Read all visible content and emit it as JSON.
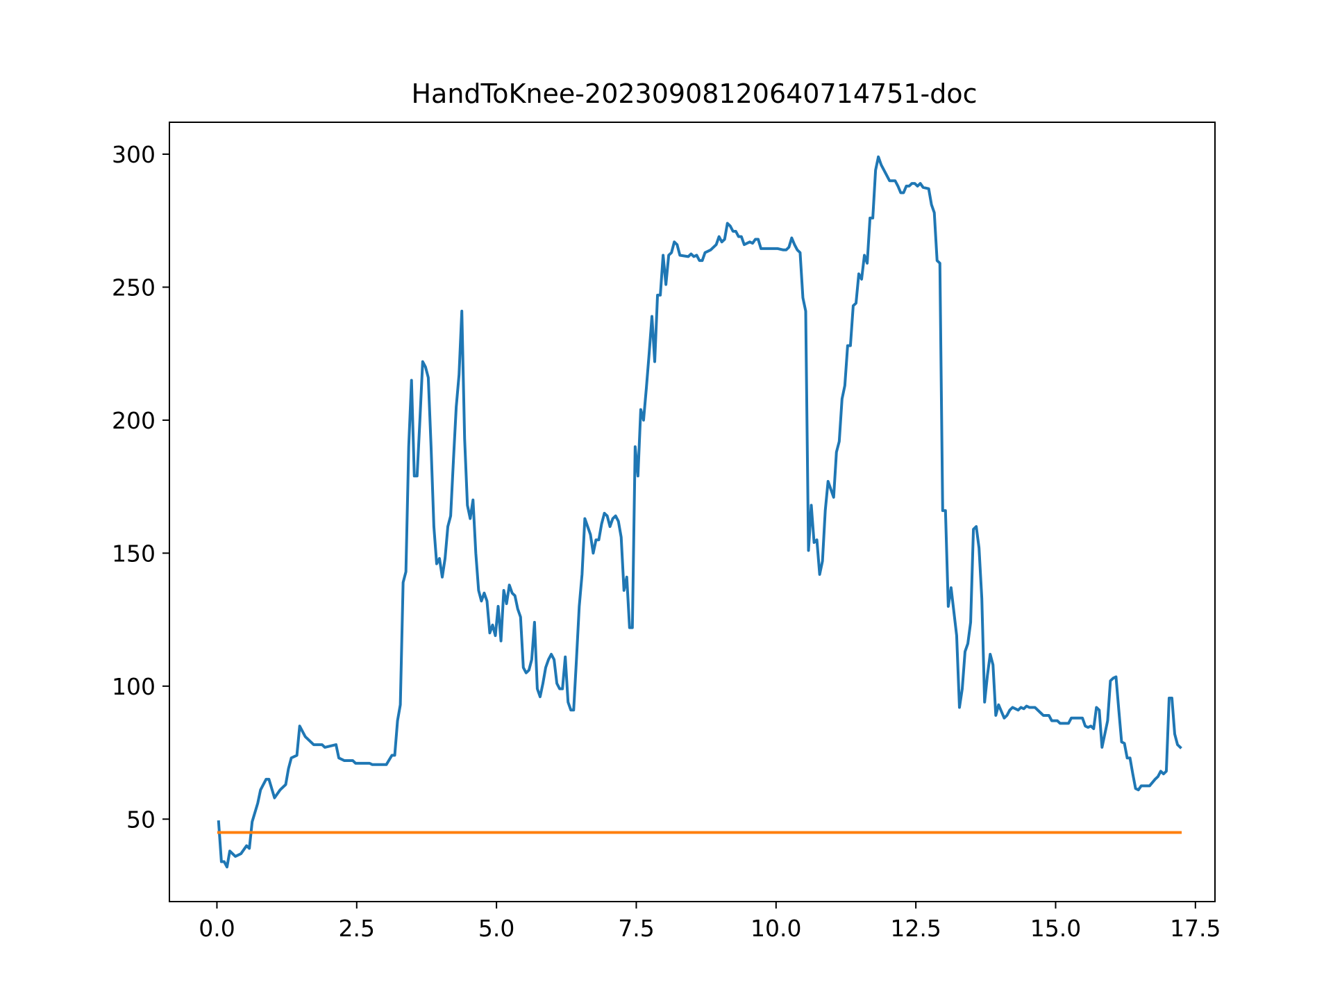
{
  "chart_data": {
    "type": "line",
    "title": "HandToKnee-20230908120640714751-doc",
    "xlabel": "",
    "ylabel": "",
    "xlim": [
      -0.85,
      17.85
    ],
    "ylim": [
      19,
      312
    ],
    "x_ticks": [
      0.0,
      2.5,
      5.0,
      7.5,
      10.0,
      12.5,
      15.0,
      17.5
    ],
    "x_tick_labels": [
      "0.0",
      "2.5",
      "5.0",
      "7.5",
      "10.0",
      "12.5",
      "15.0",
      "17.5"
    ],
    "y_ticks": [
      50,
      100,
      150,
      200,
      250,
      300
    ],
    "y_tick_labels": [
      "50",
      "100",
      "150",
      "200",
      "250",
      "300"
    ],
    "grid": false,
    "legend": "none",
    "series": [
      {
        "color": "#1f77b4",
        "points": [
          [
            0.03,
            49
          ],
          [
            0.08,
            34
          ],
          [
            0.13,
            34
          ],
          [
            0.18,
            32
          ],
          [
            0.23,
            38
          ],
          [
            0.33,
            36
          ],
          [
            0.43,
            37
          ],
          [
            0.53,
            40
          ],
          [
            0.58,
            39
          ],
          [
            0.63,
            49
          ],
          [
            0.73,
            56
          ],
          [
            0.78,
            61
          ],
          [
            0.88,
            65
          ],
          [
            0.93,
            65
          ],
          [
            1.03,
            58
          ],
          [
            1.13,
            61
          ],
          [
            1.23,
            63
          ],
          [
            1.28,
            69
          ],
          [
            1.33,
            73
          ],
          [
            1.43,
            74
          ],
          [
            1.48,
            85
          ],
          [
            1.58,
            81
          ],
          [
            1.73,
            78
          ],
          [
            1.88,
            78
          ],
          [
            1.93,
            77
          ],
          [
            2.13,
            78
          ],
          [
            2.18,
            73
          ],
          [
            2.28,
            72
          ],
          [
            2.43,
            72
          ],
          [
            2.48,
            71
          ],
          [
            2.73,
            71
          ],
          [
            2.78,
            70.5
          ],
          [
            3.03,
            70.5
          ],
          [
            3.13,
            74
          ],
          [
            3.18,
            74
          ],
          [
            3.23,
            87
          ],
          [
            3.28,
            93
          ],
          [
            3.33,
            139
          ],
          [
            3.38,
            143
          ],
          [
            3.43,
            190
          ],
          [
            3.48,
            215
          ],
          [
            3.53,
            179
          ],
          [
            3.58,
            179
          ],
          [
            3.63,
            200
          ],
          [
            3.68,
            222
          ],
          [
            3.73,
            220
          ],
          [
            3.78,
            216
          ],
          [
            3.83,
            190
          ],
          [
            3.88,
            160
          ],
          [
            3.93,
            146
          ],
          [
            3.98,
            148
          ],
          [
            4.03,
            141
          ],
          [
            4.08,
            148
          ],
          [
            4.13,
            160
          ],
          [
            4.18,
            164
          ],
          [
            4.23,
            185
          ],
          [
            4.28,
            205
          ],
          [
            4.33,
            217
          ],
          [
            4.38,
            241
          ],
          [
            4.43,
            193
          ],
          [
            4.48,
            168
          ],
          [
            4.53,
            163
          ],
          [
            4.58,
            170
          ],
          [
            4.63,
            150
          ],
          [
            4.68,
            136
          ],
          [
            4.73,
            132
          ],
          [
            4.78,
            135
          ],
          [
            4.83,
            132
          ],
          [
            4.88,
            120
          ],
          [
            4.93,
            123
          ],
          [
            4.98,
            119
          ],
          [
            5.03,
            130
          ],
          [
            5.08,
            117
          ],
          [
            5.13,
            136
          ],
          [
            5.18,
            131
          ],
          [
            5.23,
            138
          ],
          [
            5.28,
            135
          ],
          [
            5.33,
            134
          ],
          [
            5.38,
            129
          ],
          [
            5.43,
            126
          ],
          [
            5.48,
            107
          ],
          [
            5.53,
            105
          ],
          [
            5.58,
            106
          ],
          [
            5.63,
            110
          ],
          [
            5.68,
            124
          ],
          [
            5.73,
            99
          ],
          [
            5.78,
            96
          ],
          [
            5.83,
            101
          ],
          [
            5.88,
            107
          ],
          [
            5.93,
            110
          ],
          [
            5.98,
            112
          ],
          [
            6.03,
            110
          ],
          [
            6.08,
            101
          ],
          [
            6.13,
            99
          ],
          [
            6.18,
            99
          ],
          [
            6.23,
            111
          ],
          [
            6.28,
            94
          ],
          [
            6.33,
            91
          ],
          [
            6.38,
            91
          ],
          [
            6.43,
            110
          ],
          [
            6.48,
            130
          ],
          [
            6.53,
            142
          ],
          [
            6.58,
            163
          ],
          [
            6.63,
            160
          ],
          [
            6.68,
            157
          ],
          [
            6.73,
            150
          ],
          [
            6.78,
            155
          ],
          [
            6.83,
            155
          ],
          [
            6.88,
            161
          ],
          [
            6.93,
            165
          ],
          [
            6.98,
            164
          ],
          [
            7.03,
            160
          ],
          [
            7.08,
            163
          ],
          [
            7.13,
            164
          ],
          [
            7.18,
            162
          ],
          [
            7.23,
            156
          ],
          [
            7.28,
            136
          ],
          [
            7.33,
            141
          ],
          [
            7.38,
            122
          ],
          [
            7.43,
            122
          ],
          [
            7.48,
            190
          ],
          [
            7.53,
            179
          ],
          [
            7.58,
            204
          ],
          [
            7.63,
            200
          ],
          [
            7.68,
            212
          ],
          [
            7.73,
            225
          ],
          [
            7.78,
            239
          ],
          [
            7.83,
            222
          ],
          [
            7.88,
            247
          ],
          [
            7.93,
            247
          ],
          [
            7.98,
            262
          ],
          [
            8.03,
            251
          ],
          [
            8.08,
            262
          ],
          [
            8.13,
            263
          ],
          [
            8.18,
            267
          ],
          [
            8.23,
            266
          ],
          [
            8.28,
            262
          ],
          [
            8.43,
            261.5
          ],
          [
            8.48,
            262.5
          ],
          [
            8.53,
            261.5
          ],
          [
            8.58,
            262
          ],
          [
            8.63,
            260
          ],
          [
            8.68,
            260
          ],
          [
            8.73,
            263
          ],
          [
            8.83,
            264
          ],
          [
            8.93,
            266
          ],
          [
            8.98,
            269
          ],
          [
            9.03,
            267
          ],
          [
            9.08,
            268
          ],
          [
            9.13,
            274
          ],
          [
            9.18,
            273
          ],
          [
            9.23,
            271
          ],
          [
            9.28,
            271
          ],
          [
            9.33,
            269
          ],
          [
            9.38,
            269
          ],
          [
            9.43,
            266
          ],
          [
            9.53,
            267
          ],
          [
            9.58,
            266.5
          ],
          [
            9.63,
            268
          ],
          [
            9.68,
            268
          ],
          [
            9.73,
            264.5
          ],
          [
            9.88,
            264.5
          ],
          [
            10.03,
            264.5
          ],
          [
            10.13,
            264
          ],
          [
            10.18,
            264
          ],
          [
            10.23,
            265
          ],
          [
            10.28,
            268.5
          ],
          [
            10.33,
            266
          ],
          [
            10.38,
            264
          ],
          [
            10.43,
            263
          ],
          [
            10.48,
            246
          ],
          [
            10.53,
            241
          ],
          [
            10.58,
            151
          ],
          [
            10.63,
            168
          ],
          [
            10.68,
            154
          ],
          [
            10.73,
            155
          ],
          [
            10.78,
            142
          ],
          [
            10.83,
            147
          ],
          [
            10.88,
            166
          ],
          [
            10.93,
            177
          ],
          [
            10.98,
            174
          ],
          [
            11.03,
            171
          ],
          [
            11.08,
            188
          ],
          [
            11.13,
            192
          ],
          [
            11.18,
            208
          ],
          [
            11.23,
            213
          ],
          [
            11.28,
            228
          ],
          [
            11.33,
            228
          ],
          [
            11.38,
            243
          ],
          [
            11.43,
            244
          ],
          [
            11.48,
            255
          ],
          [
            11.53,
            253
          ],
          [
            11.58,
            262
          ],
          [
            11.63,
            259
          ],
          [
            11.68,
            276
          ],
          [
            11.73,
            276
          ],
          [
            11.78,
            294
          ],
          [
            11.83,
            299
          ],
          [
            11.88,
            296
          ],
          [
            11.98,
            292
          ],
          [
            12.03,
            290
          ],
          [
            12.13,
            290
          ],
          [
            12.18,
            288
          ],
          [
            12.23,
            285.5
          ],
          [
            12.28,
            285.5
          ],
          [
            12.33,
            288
          ],
          [
            12.38,
            288
          ],
          [
            12.43,
            289
          ],
          [
            12.48,
            289
          ],
          [
            12.53,
            288
          ],
          [
            12.58,
            289
          ],
          [
            12.63,
            287.5
          ],
          [
            12.73,
            287
          ],
          [
            12.78,
            281
          ],
          [
            12.83,
            278
          ],
          [
            12.88,
            260
          ],
          [
            12.93,
            259
          ],
          [
            12.98,
            166
          ],
          [
            13.03,
            166
          ],
          [
            13.08,
            130
          ],
          [
            13.13,
            137
          ],
          [
            13.23,
            119
          ],
          [
            13.28,
            92
          ],
          [
            13.33,
            99
          ],
          [
            13.38,
            113
          ],
          [
            13.43,
            116
          ],
          [
            13.48,
            124
          ],
          [
            13.53,
            159
          ],
          [
            13.58,
            160
          ],
          [
            13.63,
            152
          ],
          [
            13.68,
            133
          ],
          [
            13.73,
            94
          ],
          [
            13.78,
            104
          ],
          [
            13.83,
            112
          ],
          [
            13.88,
            108
          ],
          [
            13.93,
            89
          ],
          [
            13.98,
            93
          ],
          [
            14.08,
            88
          ],
          [
            14.13,
            89
          ],
          [
            14.18,
            91
          ],
          [
            14.23,
            92
          ],
          [
            14.33,
            91
          ],
          [
            14.38,
            92
          ],
          [
            14.43,
            91.5
          ],
          [
            14.48,
            92.5
          ],
          [
            14.53,
            92
          ],
          [
            14.63,
            92
          ],
          [
            14.73,
            90
          ],
          [
            14.78,
            89
          ],
          [
            14.88,
            89
          ],
          [
            14.93,
            87
          ],
          [
            15.03,
            87
          ],
          [
            15.08,
            86
          ],
          [
            15.13,
            86
          ],
          [
            15.23,
            86
          ],
          [
            15.28,
            88
          ],
          [
            15.48,
            88
          ],
          [
            15.53,
            85
          ],
          [
            15.58,
            84.5
          ],
          [
            15.63,
            85
          ],
          [
            15.68,
            84
          ],
          [
            15.73,
            92
          ],
          [
            15.78,
            91
          ],
          [
            15.83,
            77
          ],
          [
            15.93,
            87
          ],
          [
            15.98,
            102
          ],
          [
            16.03,
            103
          ],
          [
            16.08,
            103.5
          ],
          [
            16.13,
            91
          ],
          [
            16.18,
            79
          ],
          [
            16.23,
            78.5
          ],
          [
            16.28,
            73
          ],
          [
            16.33,
            73
          ],
          [
            16.38,
            67
          ],
          [
            16.43,
            61.5
          ],
          [
            16.48,
            61
          ],
          [
            16.53,
            62.5
          ],
          [
            16.68,
            62.5
          ],
          [
            16.78,
            65
          ],
          [
            16.83,
            66
          ],
          [
            16.88,
            68
          ],
          [
            16.93,
            67
          ],
          [
            16.98,
            68
          ],
          [
            17.03,
            95.5
          ],
          [
            17.08,
            95.5
          ],
          [
            17.13,
            82
          ],
          [
            17.18,
            78
          ],
          [
            17.23,
            77
          ]
        ]
      },
      {
        "color": "#ff7f0e",
        "points": [
          [
            0.03,
            45
          ],
          [
            17.23,
            45
          ]
        ]
      }
    ]
  }
}
